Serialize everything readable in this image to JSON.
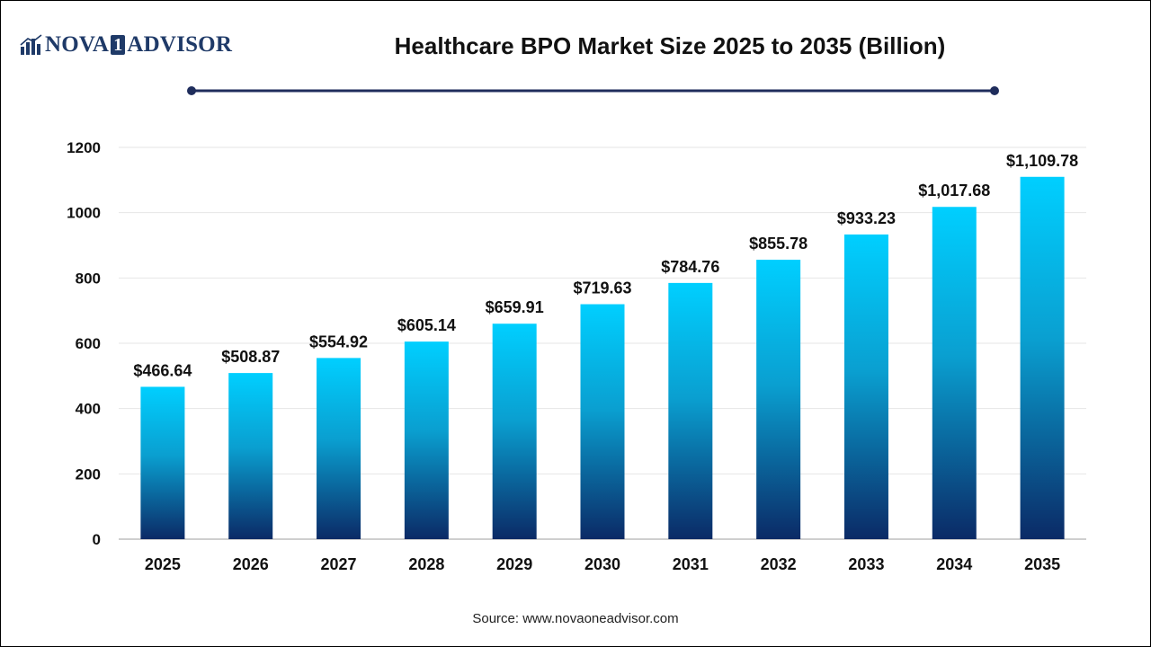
{
  "logo": {
    "part1": "NOVA",
    "part2": "1",
    "part3": "ADVISOR",
    "icon": "bar-chart-logo-icon",
    "color": "#1f3a68"
  },
  "header": {
    "title": "Healthcare BPO Market Size 2025 to 2035 (Billion)"
  },
  "footer": {
    "source": "Source: www.novaoneadvisor.com"
  },
  "colors": {
    "bar_top": "#00cfff",
    "bar_mid": "#0a9fd0",
    "bar_bottom": "#0b2a66",
    "rule": "#1f2d5c",
    "grid": "#e6e6e6",
    "axis": "#bfbfbf"
  },
  "chart_data": {
    "type": "bar",
    "title": "Healthcare BPO Market Size 2025 to 2035 (Billion)",
    "xlabel": "",
    "ylabel": "",
    "categories": [
      "2025",
      "2026",
      "2027",
      "2028",
      "2029",
      "2030",
      "2031",
      "2032",
      "2033",
      "2034",
      "2035"
    ],
    "values": [
      466.64,
      508.87,
      554.92,
      605.14,
      659.91,
      719.63,
      784.76,
      855.78,
      933.23,
      1017.68,
      1109.78
    ],
    "value_labels": [
      "$466.64",
      "$508.87",
      "$554.92",
      "$605.14",
      "$659.91",
      "$719.63",
      "$784.76",
      "$855.78",
      "$933.23",
      "$1,017.68",
      "$1,109.78"
    ],
    "yticks": [
      0,
      200,
      400,
      600,
      800,
      1000,
      1200
    ],
    "ylim": [
      0,
      1200
    ],
    "grid": true,
    "legend": "none"
  }
}
